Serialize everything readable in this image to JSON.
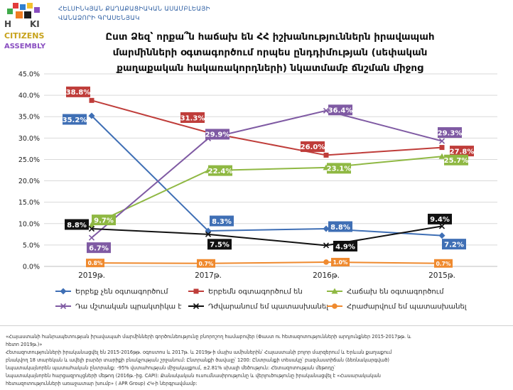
{
  "header": {
    "org_line1": "ՀԵԼՍԻՆԿՅԱՆ ՔԱՂԱՔԱՑԻԱԿԱՆ ԱՍԱՄԲԼԵԱՅԻ",
    "org_line2": "ՎԱՆԱՁՈՐԻ ԳՐԱՍԵՆՅԱԿ",
    "logo_text": "CITIZENS ASSEMBLY"
  },
  "title_lines": [
    "Ըստ Ձեզ՝ որքա՞ն հաճախ են ՀՀ իշխանություններն իրավապահ",
    "մարմինների օգտագործում որպես ընդդիմության (սեփական",
    "քաղաքական հակառակորդների) նկատմամբ ճնշման միջոց"
  ],
  "chart_data": {
    "type": "line",
    "categories": [
      "2019թ.",
      "2017թ.",
      "2016թ.",
      "2015թ."
    ],
    "ylim": [
      0,
      45
    ],
    "yticks": [
      "0.0%",
      "5.0%",
      "10.0%",
      "15.0%",
      "20.0%",
      "25.0%",
      "30.0%",
      "35.0%",
      "40.0%",
      "45.0%"
    ],
    "grid": true,
    "legend_position": "bottom",
    "series": [
      {
        "name": "Երբեք չեն օգտագործում",
        "values": [
          35.2,
          8.3,
          8.8,
          7.2
        ],
        "labels": [
          "35.2%",
          "8.3%",
          "8.8%",
          "7.2%"
        ],
        "color": "#3f6fb5",
        "marker": "diamond"
      },
      {
        "name": "Երբեմն օգտագործում են",
        "values": [
          38.8,
          31.3,
          26.0,
          27.8
        ],
        "labels": [
          "38.8%",
          "31.3%",
          "26.0%",
          "27.8%"
        ],
        "color": "#bf3d3a",
        "marker": "square"
      },
      {
        "name": "Հաճախ են օգտագործում",
        "values": [
          9.7,
          22.4,
          23.1,
          25.7
        ],
        "labels": [
          "9.7%",
          "22.4%",
          "23.1%",
          "25.7%"
        ],
        "color": "#8fb843",
        "marker": "triangle"
      },
      {
        "name": "Դա մշտական պրակտիկա է",
        "values": [
          6.7,
          29.9,
          36.4,
          29.3
        ],
        "labels": [
          "6.7%",
          "29.9%",
          "36.4%",
          "29.3%"
        ],
        "color": "#7f5aa3",
        "marker": "x"
      },
      {
        "name": "Դժվարանում եմ պատասխանել",
        "values": [
          8.8,
          7.5,
          4.9,
          9.4
        ],
        "labels": [
          "8.8%",
          "7.5%",
          "4.9%",
          "9.4%"
        ],
        "color": "#111111",
        "marker": "x"
      },
      {
        "name": "Հրաժարվում եմ պատասխանել",
        "values": [
          0.8,
          0.7,
          1.0,
          0.7
        ],
        "labels": [
          "0.8%",
          "0.7%",
          "1.0%",
          "0.7%"
        ],
        "color": "#ef8a2f",
        "marker": "circle"
      }
    ]
  },
  "footnotes": [
    "«Հայաստանի հանրապետության իրավապահ մարմինների գործունեությունը բնորոշող համաբովեր (Փաստ ու հետազոտությունների արդյունքներ 2015-2017թթ. և",
    "հետո 2019թ.)»",
    "Հետազոտությունների իրականացվել են 2015-2016թթ. օգոստոս և 2017թ. և 2019թ-ի մայիս ամիսներին՝ Հայաստանի բոլոր մարզերում և Երևան քաղաքում",
    "բնակվող 18 տարեկան և ավելի բարձր տարիքի բնակչության շրջանում: Ընտրանքի ծավալը՝ 1200: Ընտրանքի տեսակը՝ բազմաստիճան (ձեռնակարգված)",
    "նպատակայնորեն պատահական ընտրանք: -95% վստահության միջակայքում, ±2.81% սխալի մեծություն: Հետազոտության մեթոդը՝",
    " նպատակայնորեն հարցազրույցների մեթոդ (2016թ.-ից. CAPI): Քանակական ուսումնասիրությունը և վերլուծությունը իրականացվել է «Հասարակական",
    "հետազոտությունների առաջատար խումբ» ( APR Group) ՀԿ-ի ներգրավմամբ:"
  ]
}
